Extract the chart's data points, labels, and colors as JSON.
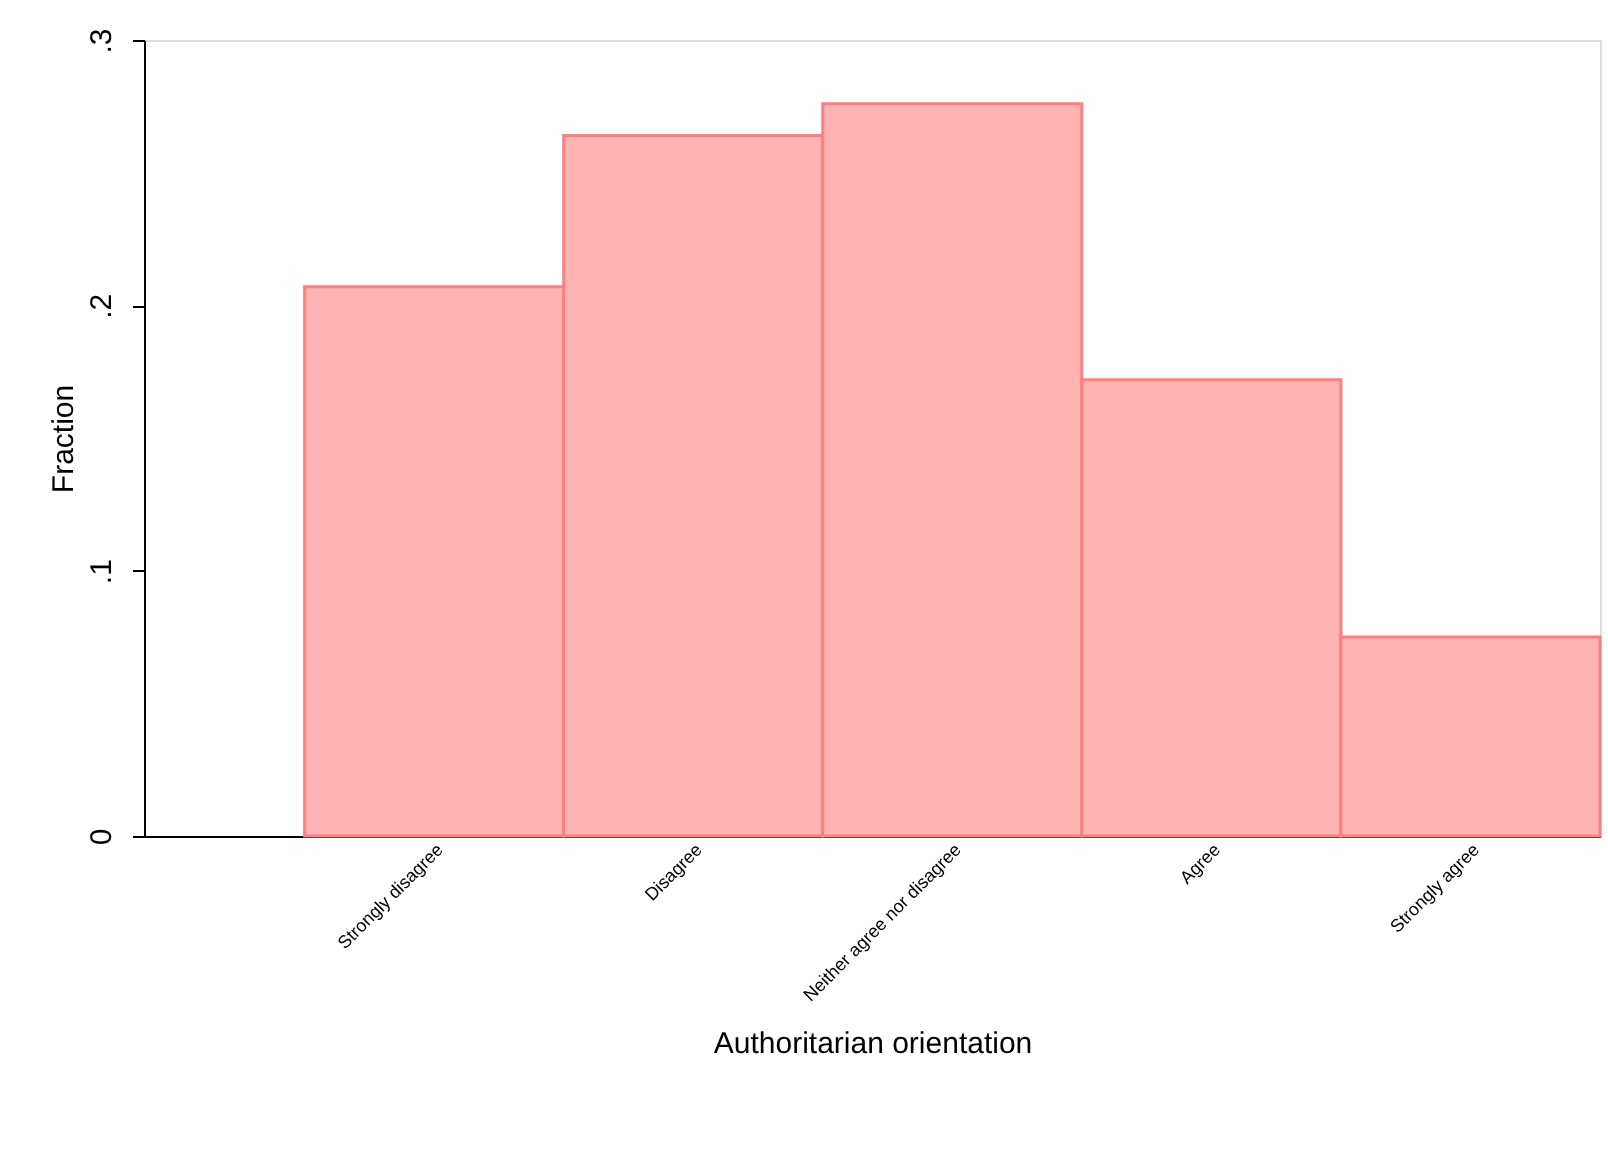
{
  "chart_data": {
    "type": "bar",
    "xlabel": "Authoritarian orientation",
    "ylabel": "Fraction",
    "categories": [
      "Strongly disagree",
      "Disagree",
      "Neither agree nor disagree",
      "Agree",
      "Strongly agree"
    ],
    "values": [
      0.207,
      0.264,
      0.276,
      0.172,
      0.075
    ],
    "color": "#ffb3b3",
    "ylim": [
      0,
      0.3
    ],
    "yticks": [
      {
        "value": 0,
        "label": "0"
      },
      {
        "value": 0.1,
        "label": ".1"
      },
      {
        "value": 0.2,
        "label": ".2"
      },
      {
        "value": 0.3,
        "label": ".3"
      }
    ],
    "grid": false
  }
}
